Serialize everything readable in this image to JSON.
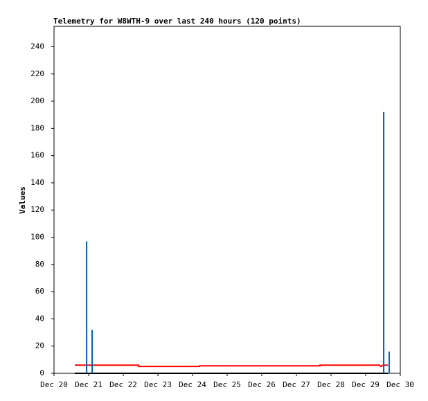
{
  "chart_data": {
    "type": "line",
    "title": "Telemetry for W8WTH-9 over last 240 hours (120 points)",
    "y_label": "Values",
    "xlim": [
      0,
      240
    ],
    "xticks": [
      {
        "value": 0,
        "label": "Dec 20"
      },
      {
        "value": 24,
        "label": "Dec 21"
      },
      {
        "value": 48,
        "label": "Dec 22"
      },
      {
        "value": 72,
        "label": "Dec 23"
      },
      {
        "value": 96,
        "label": "Dec 24"
      },
      {
        "value": 120,
        "label": "Dec 25"
      },
      {
        "value": 144,
        "label": "Dec 26"
      },
      {
        "value": 168,
        "label": "Dec 27"
      },
      {
        "value": 192,
        "label": "Dec 28"
      },
      {
        "value": 216,
        "label": "Dec 29"
      },
      {
        "value": 240,
        "label": "Dec 30"
      }
    ],
    "ylim": [
      0,
      255
    ],
    "yticks": [
      0,
      20,
      40,
      60,
      80,
      100,
      120,
      140,
      160,
      180,
      200,
      220,
      240
    ],
    "series": [
      {
        "color": "#000000",
        "style": "line",
        "x": [
          14.4,
          231.4
        ],
        "values": [
          0,
          0
        ]
      },
      {
        "color": "#ff0000",
        "style": "line",
        "x": [
          14.4,
          58.6,
          58.6,
          100.8,
          100.8,
          184.3,
          184.3,
          225.6,
          226.5,
          228,
          231.4
        ],
        "values": [
          6,
          6,
          5,
          5,
          5.5,
          5.5,
          6,
          6,
          5,
          6,
          6
        ]
      },
      {
        "color": "#0060c0",
        "style": "impulse",
        "x": [
          22.6,
          26.4,
          228.5,
          232.3
        ],
        "values": [
          97,
          32,
          192,
          16
        ]
      }
    ]
  }
}
